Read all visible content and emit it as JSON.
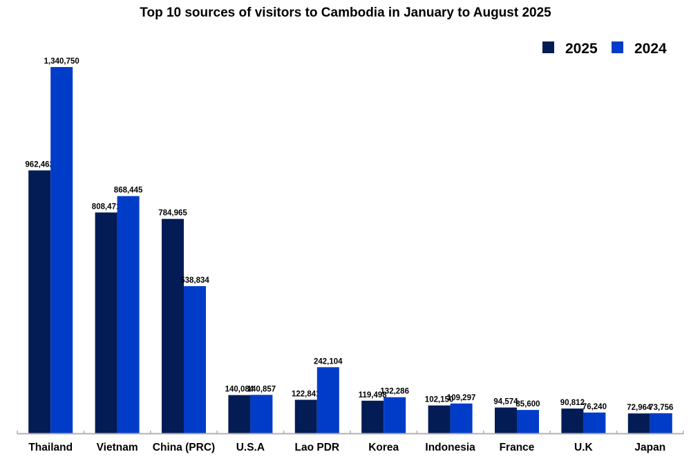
{
  "chart_data": {
    "type": "bar",
    "title": "Top 10 sources of visitors to Cambodia in January to August 2025",
    "xlabel": "",
    "ylabel": "",
    "ylim": [
      0,
      1340750
    ],
    "grid": false,
    "legend_position": "top-right",
    "categories": [
      "Thailand",
      "Vietnam",
      "China (PRC)",
      "U.S.A",
      "Lao PDR",
      "Korea",
      "Indonesia",
      "France",
      "U.K",
      "Japan"
    ],
    "series": [
      {
        "name": "2025",
        "color": "#041c55",
        "values": [
          962462,
          808471,
          784965,
          140084,
          122841,
          119498,
          102150,
          94574,
          90812,
          72964
        ],
        "labels": [
          "962,462",
          "808,471",
          "784,965",
          "140,084",
          "122,841",
          "119,498",
          "102,150",
          "94,574",
          "90,812",
          "72,964"
        ]
      },
      {
        "name": "2024",
        "color": "#003cc8",
        "values": [
          1340750,
          868445,
          538834,
          140857,
          242104,
          132286,
          109297,
          85600,
          76240,
          73756
        ],
        "labels": [
          "1,340,750",
          "868,445",
          "538,834",
          "140,857",
          "242,104",
          "132,286",
          "109,297",
          "85,600",
          "76,240",
          "73,756"
        ]
      }
    ]
  }
}
